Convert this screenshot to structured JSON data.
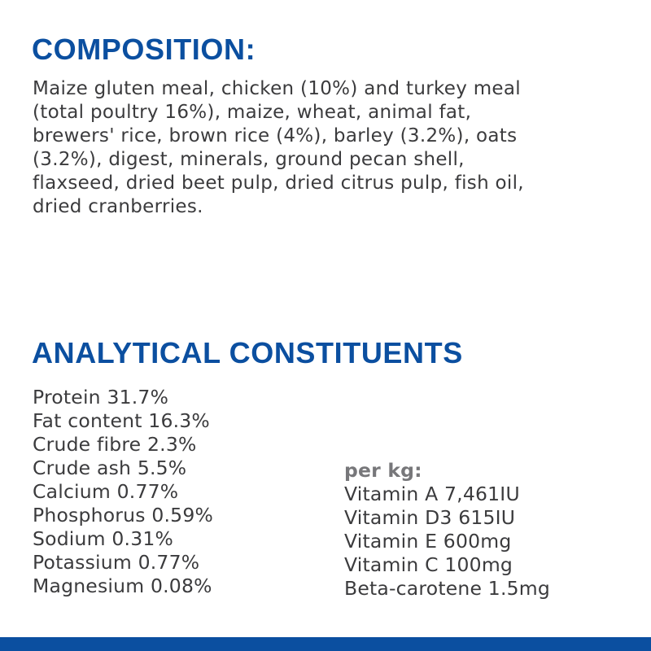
{
  "composition": {
    "title": "COMPOSITION:",
    "lines": [
      "Maize gluten meal, chicken (10%) and turkey meal",
      "(total poultry 16%), maize, wheat, animal fat,",
      "brewers' rice, brown rice (4%), barley (3.2%), oats",
      "(3.2%), digest, minerals, ground pecan shell,",
      "flaxseed, dried beet pulp, dried citrus pulp, fish oil,",
      "dried cranberries."
    ]
  },
  "analytical": {
    "title": "ANALYTICAL CONSTITUENTS",
    "constituents": [
      "Protein 31.7%",
      "Fat content 16.3%",
      "Crude fibre 2.3%",
      "Crude ash 5.5%",
      "Calcium 0.77%",
      "Phosphorus 0.59%",
      "Sodium 0.31%",
      "Potassium 0.77%",
      "Magnesium 0.08%"
    ],
    "per_kg_label": "per kg:",
    "additives": [
      "Vitamin A 7,461IU",
      "Vitamin D3 615IU",
      "Vitamin E 600mg",
      "Vitamin C 100mg",
      "Beta-carotene 1.5mg"
    ]
  },
  "colors": {
    "brand_blue": "#0b4fa0",
    "text": "#3b3b3d",
    "muted": "#77777a"
  }
}
